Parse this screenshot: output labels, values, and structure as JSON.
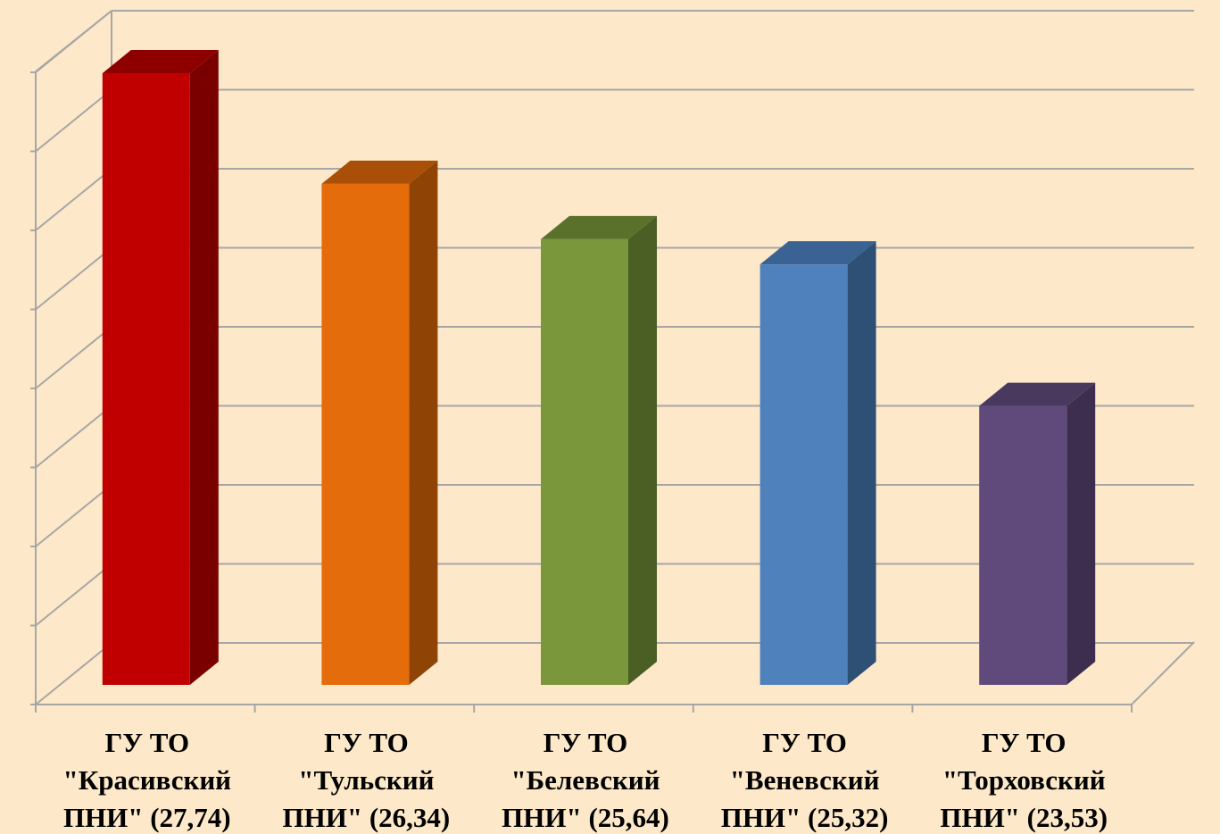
{
  "chart_data": {
    "type": "bar",
    "title": "",
    "xlabel": "",
    "ylabel": "",
    "grid": true,
    "legend": "none",
    "ylim": [
      20,
      28.5
    ],
    "y_ticks": [
      20,
      21,
      22,
      23,
      24,
      25,
      26,
      27,
      28
    ],
    "categories": [
      [
        "ГУ ТО",
        "\"Красивский",
        "ПНИ\" (27,74)"
      ],
      [
        "ГУ ТО",
        "\"Тульский",
        "ПНИ\" (26,34)"
      ],
      [
        "ГУ ТО",
        "\"Белевский",
        "ПНИ\" (25,64)"
      ],
      [
        "ГУ ТО",
        "\"Веневский",
        "ПНИ\" (25,32)"
      ],
      [
        "ГУ ТО",
        "\"Торховский",
        "ПНИ\" (23,53)"
      ]
    ],
    "values": [
      27.74,
      26.34,
      25.64,
      25.32,
      23.53
    ],
    "colors": [
      {
        "front": "#c00000",
        "side": "#7a0000",
        "top": "#8e0000"
      },
      {
        "front": "#e46c0a",
        "side": "#8f4305",
        "top": "#a94f07"
      },
      {
        "front": "#7a973c",
        "side": "#4b5e24",
        "top": "#5a712c"
      },
      {
        "front": "#4f81bd",
        "side": "#2f5075",
        "top": "#3a6293"
      },
      {
        "front": "#604a7b",
        "side": "#3d2e4f",
        "top": "#4a395f"
      }
    ],
    "gridline_color": "#a6a6a6",
    "background_color": "#fde9c9"
  }
}
